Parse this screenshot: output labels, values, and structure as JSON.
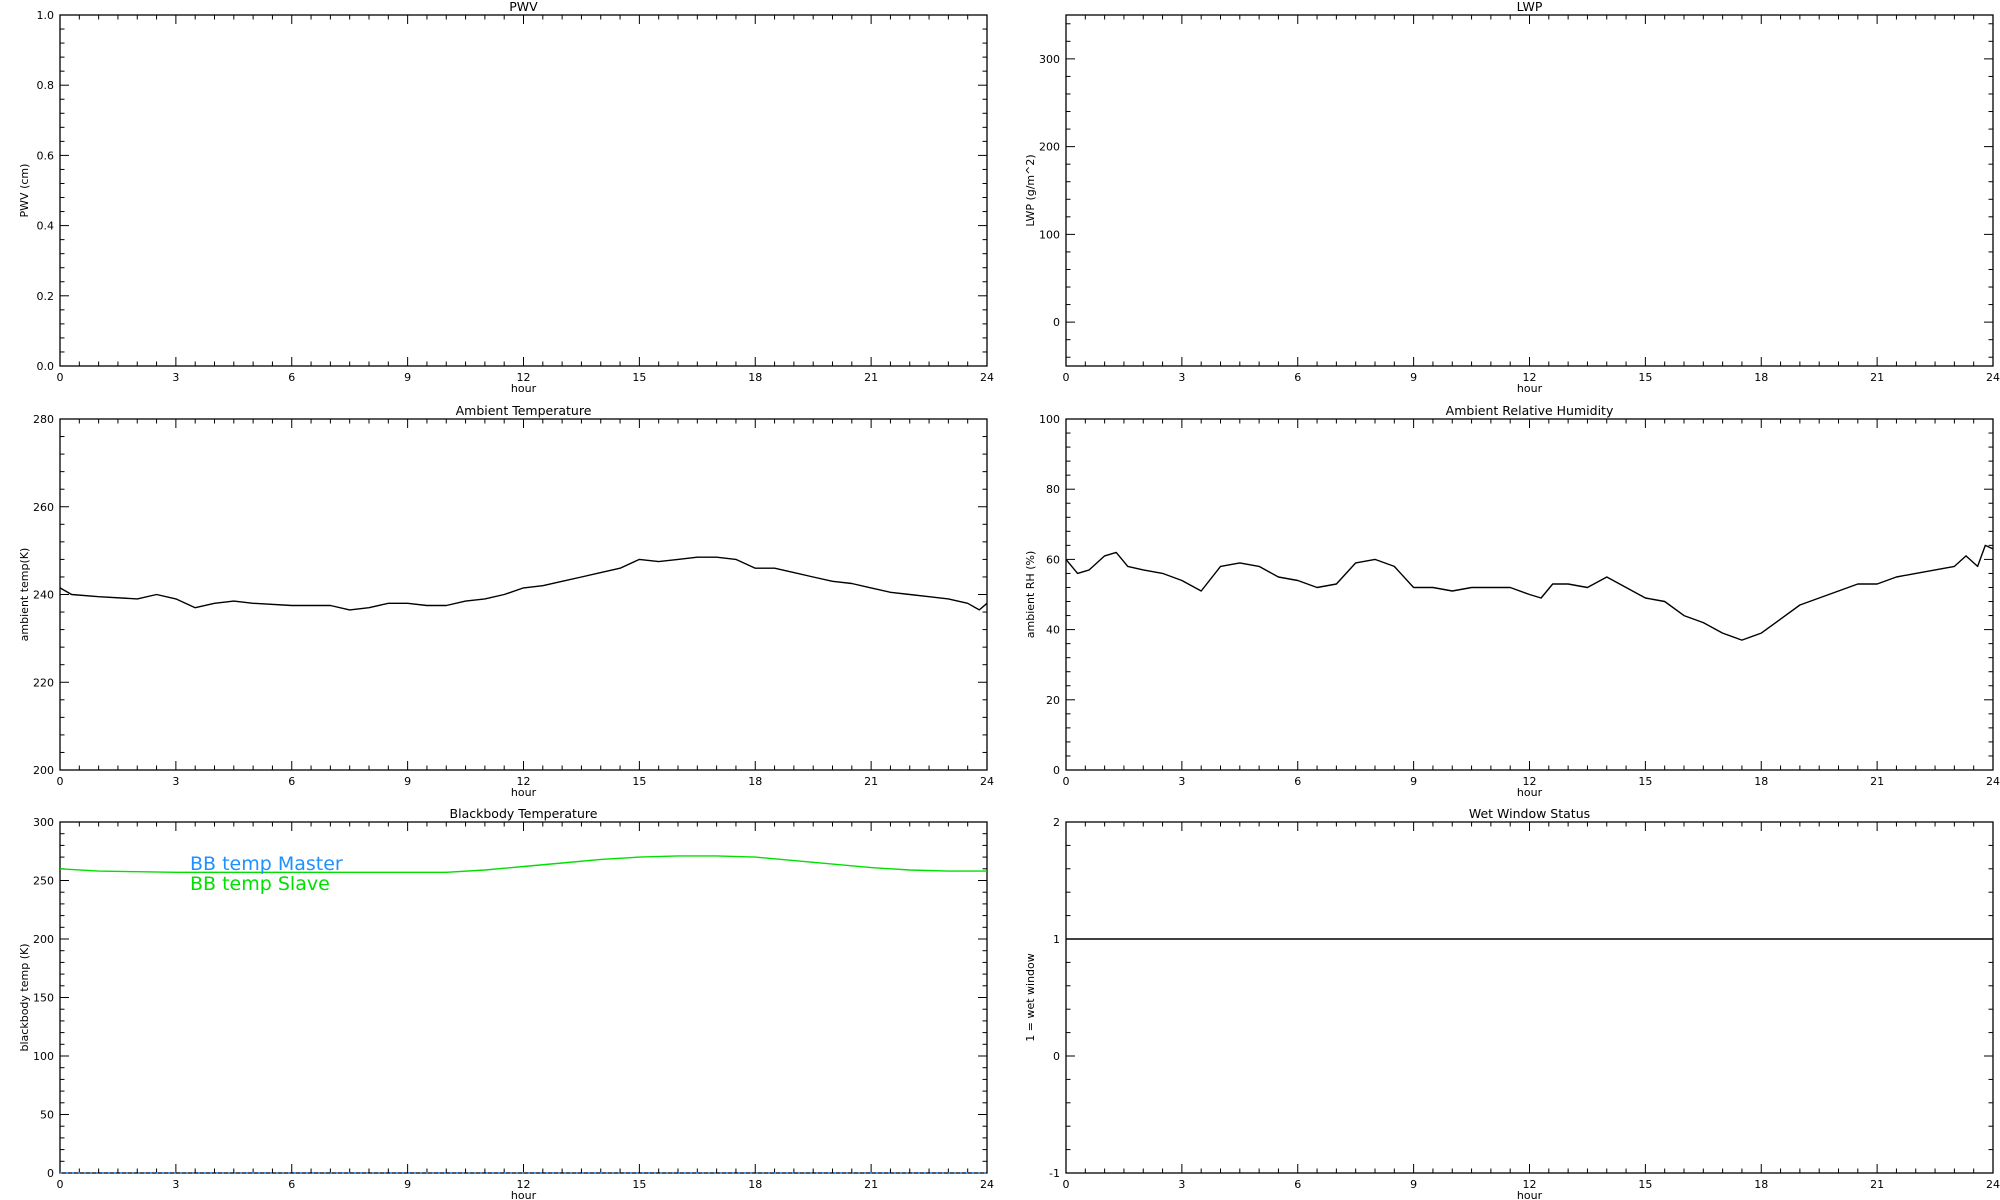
{
  "chart_data": [
    {
      "type": "line",
      "title": "PWV",
      "xlabel": "hour",
      "ylabel": "PWV (cm)",
      "xlim": [
        0,
        24
      ],
      "ylim": [
        0,
        1
      ],
      "xticks": [
        "0",
        "3",
        "6",
        "9",
        "12",
        "15",
        "18",
        "21",
        "24"
      ],
      "yticks": [
        "0.0",
        "0.2",
        "0.4",
        "0.6",
        "0.8",
        "1.0"
      ],
      "series": []
    },
    {
      "type": "line",
      "title": "LWP",
      "xlabel": "hour",
      "ylabel": "LWP (g/m^2)",
      "xlim": [
        0,
        24
      ],
      "ylim": [
        -50,
        350
      ],
      "xticks": [
        "0",
        "3",
        "6",
        "9",
        "12",
        "15",
        "18",
        "21",
        "24"
      ],
      "yticks": [
        "0",
        "100",
        "200",
        "300"
      ],
      "series": []
    },
    {
      "type": "line",
      "title": "Ambient Temperature",
      "xlabel": "hour",
      "ylabel": "ambient temp(K)",
      "xlim": [
        0,
        24
      ],
      "ylim": [
        200,
        280
      ],
      "xticks": [
        "0",
        "3",
        "6",
        "9",
        "12",
        "15",
        "18",
        "21",
        "24"
      ],
      "yticks": [
        "200",
        "220",
        "240",
        "260",
        "280"
      ],
      "series": [
        {
          "color": "#000000",
          "x": [
            0,
            0.3,
            1,
            2,
            2.5,
            3,
            3.5,
            4,
            4.5,
            5,
            6,
            7,
            7.5,
            8,
            8.5,
            9,
            9.5,
            10,
            10.5,
            11,
            11.5,
            12,
            12.5,
            13,
            13.5,
            14,
            14.5,
            15,
            15.5,
            16,
            16.5,
            17,
            17.5,
            18,
            18.5,
            19,
            19.5,
            20,
            20.5,
            21,
            21.5,
            22,
            22.5,
            23,
            23.5,
            23.8,
            24
          ],
          "y": [
            241.5,
            240,
            239.5,
            239,
            240,
            239,
            237,
            238,
            238.5,
            238,
            237.5,
            237.5,
            236.5,
            237,
            238,
            238,
            237.5,
            237.5,
            238.5,
            239,
            240,
            241.5,
            242,
            243,
            244,
            245,
            246,
            248,
            247.5,
            248,
            248.5,
            248.5,
            248,
            246,
            246,
            245,
            244,
            243,
            242.5,
            241.5,
            240.5,
            240,
            239.5,
            239,
            238,
            236.5,
            238
          ]
        }
      ]
    },
    {
      "type": "line",
      "title": "Ambient Relative Humidity",
      "xlabel": "hour",
      "ylabel": "ambient RH (%)",
      "xlim": [
        0,
        24
      ],
      "ylim": [
        0,
        100
      ],
      "xticks": [
        "0",
        "3",
        "6",
        "9",
        "12",
        "15",
        "18",
        "21",
        "24"
      ],
      "yticks": [
        "0",
        "20",
        "40",
        "60",
        "80",
        "100"
      ],
      "series": [
        {
          "color": "#000000",
          "x": [
            0,
            0.3,
            0.6,
            1,
            1.3,
            1.6,
            2,
            2.5,
            3,
            3.5,
            4,
            4.5,
            5,
            5.5,
            6,
            6.5,
            7,
            7.5,
            8,
            8.5,
            9,
            9.5,
            10,
            10.5,
            11,
            11.5,
            12,
            12.3,
            12.6,
            13,
            13.5,
            14,
            14.5,
            15,
            15.5,
            16,
            16.5,
            17,
            17.5,
            18,
            18.5,
            19,
            19.5,
            20,
            20.5,
            21,
            21.5,
            22,
            22.5,
            23,
            23.3,
            23.6,
            23.8,
            24
          ],
          "y": [
            60,
            56,
            57,
            61,
            62,
            58,
            57,
            56,
            54,
            51,
            58,
            59,
            58,
            55,
            54,
            52,
            53,
            59,
            60,
            58,
            52,
            52,
            51,
            52,
            52,
            52,
            50,
            49,
            53,
            53,
            52,
            55,
            52,
            49,
            48,
            44,
            42,
            39,
            37,
            39,
            43,
            47,
            49,
            51,
            53,
            53,
            55,
            56,
            57,
            58,
            61,
            58,
            64,
            63
          ]
        }
      ]
    },
    {
      "type": "line",
      "title": "Blackbody Temperature",
      "xlabel": "hour",
      "ylabel": "blackbody temp (K)",
      "xlim": [
        0,
        24
      ],
      "ylim": [
        0,
        300
      ],
      "xticks": [
        "0",
        "3",
        "6",
        "9",
        "12",
        "15",
        "18",
        "21",
        "24"
      ],
      "yticks": [
        "0",
        "50",
        "100",
        "150",
        "200",
        "250",
        "300"
      ],
      "legend_placement": "upper-left",
      "series": [
        {
          "name": "BB temp Master",
          "color": "#1e90ff",
          "style": "dotted",
          "x": [
            0,
            24
          ],
          "y": [
            0,
            0
          ]
        },
        {
          "name": "BB temp Slave",
          "color": "#00e000",
          "x": [
            0,
            1,
            2,
            3,
            4,
            5,
            6,
            7,
            8,
            9,
            10,
            11,
            12,
            13,
            14,
            15,
            16,
            17,
            18,
            19,
            20,
            21,
            22,
            23,
            24
          ],
          "y": [
            260,
            258,
            257.5,
            257,
            257,
            257,
            257,
            257,
            257,
            257,
            257,
            259,
            262,
            265,
            268,
            270,
            271,
            271,
            270,
            267,
            264,
            261,
            259,
            258,
            258
          ]
        }
      ]
    },
    {
      "type": "line",
      "title": "Wet Window Status",
      "xlabel": "hour",
      "ylabel": "1 = wet window",
      "xlim": [
        0,
        24
      ],
      "ylim": [
        -1,
        2
      ],
      "xticks": [
        "0",
        "3",
        "6",
        "9",
        "12",
        "15",
        "18",
        "21",
        "24"
      ],
      "yticks": [
        "-1",
        "0",
        "1",
        "2"
      ],
      "series": [
        {
          "color": "#000000",
          "x": [
            0,
            24
          ],
          "y": [
            1,
            1
          ]
        }
      ]
    }
  ]
}
